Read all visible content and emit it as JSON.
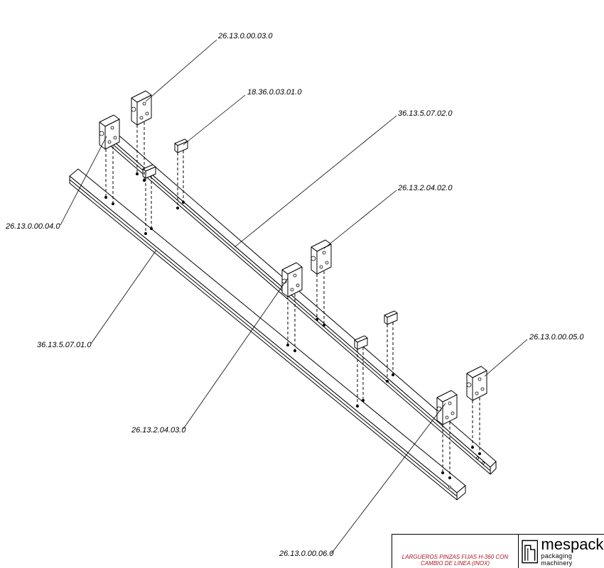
{
  "drawing": {
    "callouts": [
      "26.13.0.00.03.0",
      "18.36.0.03.01.0",
      "36.13.5.07.02.0",
      "26.13.2.04.02.0",
      "26.13.0.00.04.0",
      "36.13.5.07.01.0",
      "26.13.2.04.03.0",
      "26.13.0.00.05.0",
      "26.13.0.00.06.0"
    ]
  },
  "title_block": {
    "title": "LARGUEROS PINZAS FIJAS H-360 CON CAMBIO DE LINEA (INOX)",
    "brand": "mespack",
    "tagline": "packaging machinery",
    "title_color": "#b0141e"
  }
}
